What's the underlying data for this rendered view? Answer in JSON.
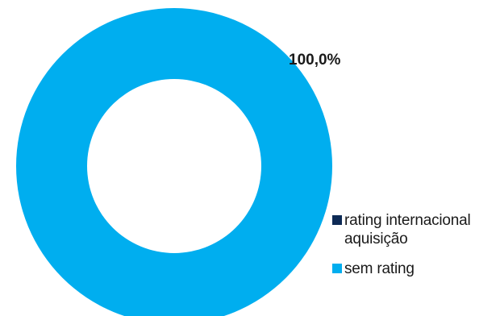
{
  "chart_data": {
    "type": "pie",
    "style": "donut",
    "title": "",
    "slices": [
      {
        "label": "rating internacional aquisição",
        "value": 0.0,
        "color": "#0d2a55"
      },
      {
        "label": "sem rating",
        "value": 100.0,
        "color": "#00aeef"
      }
    ],
    "data_labels": [
      "100,0%"
    ],
    "legend_position": "right-bottom"
  }
}
